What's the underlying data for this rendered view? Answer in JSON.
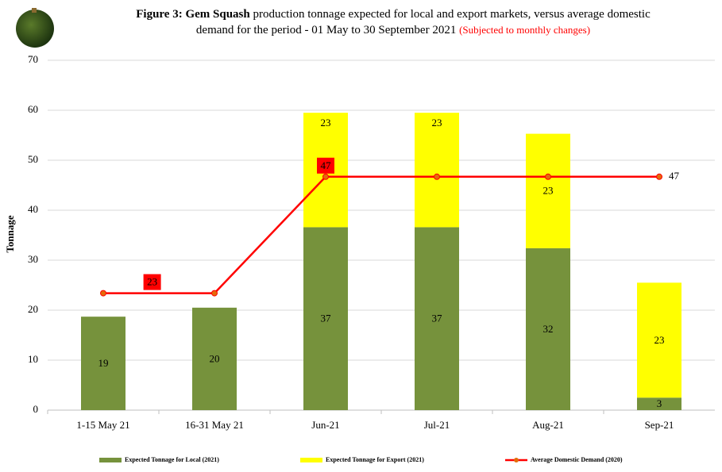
{
  "chart_data": {
    "type": "bar",
    "stacked": true,
    "title_bold": "Figure 3: Gem Squash",
    "title": "production tonnage expected for local and export markets, versus average domestic demand for the period - 01 May to 30 September 2021",
    "title_note": "(Subjected to monthly changes)",
    "y_label": "Tonnage",
    "categories": [
      "1-15 May 21",
      "16-31 May 21",
      "Jun-21",
      "Jul-21",
      "Aug-21",
      "Sep-21"
    ],
    "series": [
      {
        "name": "Expected Tonnage for Local (2021)",
        "type": "bar",
        "color": "#76923c",
        "values": [
          18.7,
          20.5,
          36.6,
          36.6,
          32.4,
          2.5
        ],
        "value_labels": [
          "19",
          "20",
          "37",
          "37",
          "32",
          "3"
        ]
      },
      {
        "name": "Expected Tonnage for Export (2021)",
        "type": "bar",
        "color": "#ffff00",
        "values": [
          null,
          null,
          22.9,
          22.9,
          22.9,
          23.0
        ],
        "value_labels": [
          null,
          null,
          "23",
          "23",
          "23",
          "23"
        ]
      },
      {
        "name": "Average Domestic Demand (2020)",
        "type": "line",
        "color": "#ff0000",
        "marker_color": "#e46c0a",
        "values": [
          23.4,
          23.4,
          46.7,
          46.7,
          46.7,
          46.7
        ],
        "value_labels": [
          "23",
          null,
          "47",
          null,
          null,
          "47"
        ]
      }
    ],
    "ylim": [
      0,
      70
    ],
    "yticks": [
      0,
      10,
      20,
      30,
      40,
      50,
      60,
      70
    ],
    "grid": true
  }
}
